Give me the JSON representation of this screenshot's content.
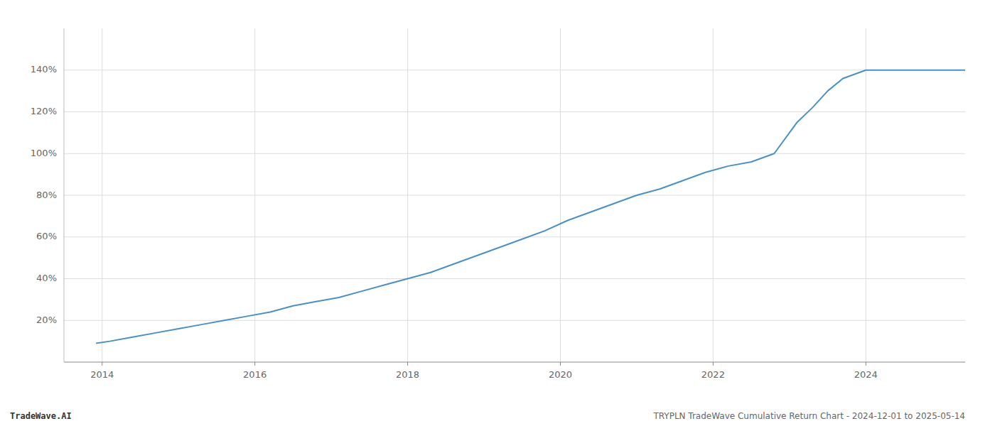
{
  "chart_data": {
    "type": "line",
    "title": "TRYPLN TradeWave Cumulative Return Chart - 2024-12-01 to 2025-05-14",
    "annotations": [
      "TradeWave.AI"
    ],
    "color": "#4a90c4",
    "grid": true,
    "xlim": [
      2013.5,
      2025.3
    ],
    "ylim": [
      0,
      160
    ],
    "xticks": [
      2014,
      2016,
      2018,
      2020,
      2022,
      2024
    ],
    "yticks": [
      {
        "value": 20,
        "label": "20%"
      },
      {
        "value": 40,
        "label": "40%"
      },
      {
        "value": 60,
        "label": "60%"
      },
      {
        "value": 80,
        "label": "80%"
      },
      {
        "value": 100,
        "label": "100%"
      },
      {
        "value": 120,
        "label": "120%"
      },
      {
        "value": 140,
        "label": "140%"
      }
    ],
    "x": [
      2013.92,
      2014.1,
      2014.4,
      2014.7,
      2015.0,
      2015.3,
      2015.6,
      2015.9,
      2016.2,
      2016.5,
      2016.8,
      2017.1,
      2017.4,
      2017.7,
      2018.0,
      2018.3,
      2018.6,
      2018.9,
      2019.2,
      2019.5,
      2019.8,
      2020.1,
      2020.4,
      2020.7,
      2021.0,
      2021.3,
      2021.6,
      2021.9,
      2022.2,
      2022.5,
      2022.8,
      2023.1,
      2023.3,
      2023.5,
      2023.7,
      2024.0,
      2024.5,
      2025.0,
      2025.3
    ],
    "values": [
      9,
      10,
      12,
      14,
      16,
      18,
      20,
      22,
      24,
      27,
      29,
      31,
      34,
      37,
      40,
      43,
      47,
      51,
      55,
      59,
      63,
      68,
      72,
      76,
      80,
      83,
      87,
      91,
      94,
      96,
      100,
      115,
      122,
      130,
      136,
      140,
      140,
      140,
      140
    ]
  }
}
